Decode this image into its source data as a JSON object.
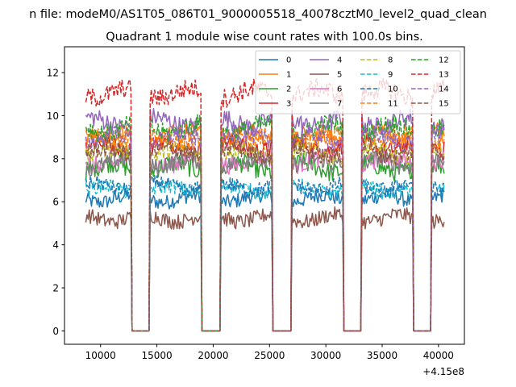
{
  "suptitle": "n file: modeM0/AS1T05_086T01_9000005518_40078cztM0_level2_quad_clean",
  "chart_data": {
    "type": "line",
    "title": "Quadrant 1 module wise count rates with 100.0s bins.",
    "xlabel": "",
    "ylabel": "",
    "x_offset_label": "+4.15e8",
    "xlim": [
      6800,
      42300
    ],
    "ylim": [
      -0.62,
      13.2
    ],
    "xticks": [
      10000,
      15000,
      20000,
      25000,
      30000,
      35000,
      40000
    ],
    "xtick_labels": [
      "10000",
      "15000",
      "20000",
      "25000",
      "30000",
      "35000",
      "40000"
    ],
    "yticks": [
      0,
      2,
      4,
      6,
      8,
      10,
      12
    ],
    "ytick_labels": [
      "0",
      "2",
      "4",
      "6",
      "8",
      "10",
      "12"
    ],
    "grid": false,
    "legend_placement": "top-right",
    "legend_columns": 4,
    "x_start": 8700,
    "x_end": 40500,
    "bin_seconds": 100,
    "on_intervals": [
      [
        8700,
        12750
      ],
      [
        14400,
        18900
      ],
      [
        20700,
        25200
      ],
      [
        27000,
        31500
      ],
      [
        33200,
        37700
      ],
      [
        39400,
        40500
      ]
    ],
    "off_level": 0,
    "series": [
      {
        "name": "0",
        "color": "#1f77b4",
        "dash": "solid",
        "level": 6.1,
        "noise": 0.35
      },
      {
        "name": "1",
        "color": "#ff7f0e",
        "dash": "solid",
        "level": 9.2,
        "noise": 0.45
      },
      {
        "name": "2",
        "color": "#2ca02c",
        "dash": "solid",
        "level": 7.6,
        "noise": 0.45
      },
      {
        "name": "3",
        "color": "#d62728",
        "dash": "solid",
        "level": 8.6,
        "noise": 0.4
      },
      {
        "name": "4",
        "color": "#9467bd",
        "dash": "solid",
        "level": 9.8,
        "noise": 0.45
      },
      {
        "name": "5",
        "color": "#8c564b",
        "dash": "solid",
        "level": 5.2,
        "noise": 0.35
      },
      {
        "name": "6",
        "color": "#e377c2",
        "dash": "solid",
        "level": 8.0,
        "noise": 0.4
      },
      {
        "name": "7",
        "color": "#7f7f7f",
        "dash": "solid",
        "level": 7.8,
        "noise": 0.4
      },
      {
        "name": "8",
        "color": "#bcbd22",
        "dash": "dashed",
        "level": 8.4,
        "noise": 0.4
      },
      {
        "name": "9",
        "color": "#17becf",
        "dash": "dashed",
        "level": 6.6,
        "noise": 0.35
      },
      {
        "name": "10",
        "color": "#1f77b4",
        "dash": "dashed",
        "level": 6.8,
        "noise": 0.35
      },
      {
        "name": "11",
        "color": "#ff7f0e",
        "dash": "dashed",
        "level": 9.0,
        "noise": 0.45
      },
      {
        "name": "12",
        "color": "#2ca02c",
        "dash": "dashed",
        "level": 9.5,
        "noise": 0.45
      },
      {
        "name": "13",
        "color": "#d62728",
        "dash": "dashed",
        "level": 10.9,
        "noise": 0.45
      },
      {
        "name": "14",
        "color": "#9467bd",
        "dash": "dashed",
        "level": 8.8,
        "noise": 0.4
      },
      {
        "name": "15",
        "color": "#8c564b",
        "dash": "dashed",
        "level": 8.3,
        "noise": 0.4
      }
    ]
  }
}
